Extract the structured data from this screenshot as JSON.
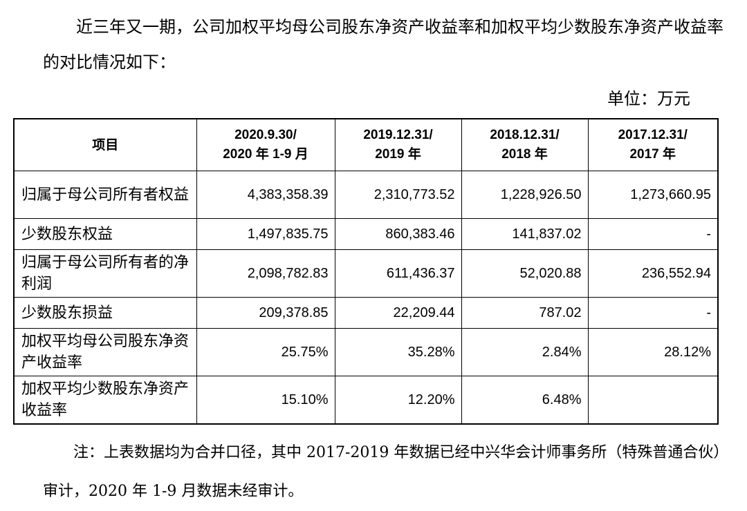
{
  "intro_text": "近三年又一期，公司加权平均母公司股东净资产收益率和加权平均少数股东净资产收益率的对比情况如下：",
  "unit_label": "单位：万元",
  "table": {
    "headers": [
      {
        "line1": "项目",
        "line2": ""
      },
      {
        "line1": "2020.9.30/",
        "line2": "2020 年 1-9 月"
      },
      {
        "line1": "2019.12.31/",
        "line2": "2019 年"
      },
      {
        "line1": "2018.12.31/",
        "line2": "2018 年"
      },
      {
        "line1": "2017.12.31/",
        "line2": "2017 年"
      }
    ],
    "rows": [
      {
        "label": "归属于母公司所有者权益",
        "values": [
          "4,383,358.39",
          "2,310,773.52",
          "1,228,926.50",
          "1,273,660.95"
        ]
      },
      {
        "label": "少数股东权益",
        "values": [
          "1,497,835.75",
          "860,383.46",
          "141,837.02",
          "-"
        ]
      },
      {
        "label": "归属于母公司所有者的净利润",
        "values": [
          "2,098,782.83",
          "611,436.37",
          "52,020.88",
          "236,552.94"
        ]
      },
      {
        "label": "少数股东损益",
        "values": [
          "209,378.85",
          "22,209.44",
          "787.02",
          "-"
        ]
      },
      {
        "label": "加权平均母公司股东净资产收益率",
        "values": [
          "25.75%",
          "35.28%",
          "2.84%",
          "28.12%"
        ]
      },
      {
        "label": "加权平均少数股东净资产收益率",
        "values": [
          "15.10%",
          "12.20%",
          "6.48%",
          ""
        ]
      }
    ]
  },
  "note_text": "注：上表数据均为合并口径，其中 2017-2019 年数据已经中兴华会计师事务所（特殊普通合伙）审计，2020 年 1-9 月数据未经审计。"
}
